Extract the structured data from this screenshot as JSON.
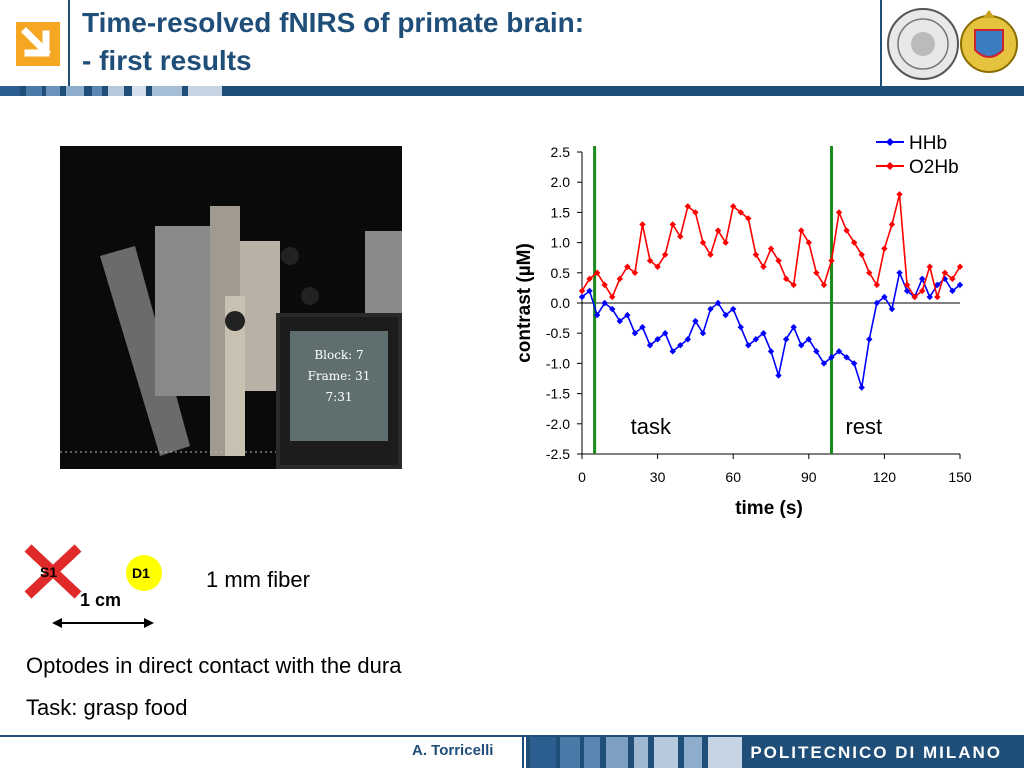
{
  "header": {
    "title_line1": "Time-resolved fNIRS of primate brain:",
    "title_line2": "- first results"
  },
  "photo": {
    "monitor_lines": [
      "Block: 7",
      "Frame: 31",
      "7:31"
    ]
  },
  "chart_data": {
    "type": "line",
    "xlabel": "time (s)",
    "ylabel": "contrast (µM)",
    "xlim": [
      0,
      150
    ],
    "ylim": [
      -2.5,
      2.5
    ],
    "xticks": [
      "0",
      "30",
      "60",
      "90",
      "120",
      "150"
    ],
    "yticks": [
      "2.5",
      "2.0",
      "1.5",
      "1.0",
      "0.5",
      "0.0",
      "-0.5",
      "-1.0",
      "-1.5",
      "-2.0",
      "-2.5"
    ],
    "legend_position": "top-right",
    "markers": [
      {
        "x": 5,
        "label": "task"
      },
      {
        "x": 99,
        "label": "rest"
      }
    ],
    "series": [
      {
        "name": "HHb",
        "color": "#0000ff",
        "x": [
          0,
          3,
          6,
          9,
          12,
          15,
          18,
          21,
          24,
          27,
          30,
          33,
          36,
          39,
          42,
          45,
          48,
          51,
          54,
          57,
          60,
          63,
          66,
          69,
          72,
          75,
          78,
          81,
          84,
          87,
          90,
          93,
          96,
          99,
          102,
          105,
          108,
          111,
          114,
          117,
          120,
          123,
          126,
          129,
          132,
          135,
          138,
          141,
          144,
          147,
          150
        ],
        "y": [
          0.1,
          0.2,
          -0.2,
          0.0,
          -0.1,
          -0.3,
          -0.2,
          -0.5,
          -0.4,
          -0.7,
          -0.6,
          -0.5,
          -0.8,
          -0.7,
          -0.6,
          -0.3,
          -0.5,
          -0.1,
          0.0,
          -0.2,
          -0.1,
          -0.4,
          -0.7,
          -0.6,
          -0.5,
          -0.8,
          -1.2,
          -0.6,
          -0.4,
          -0.7,
          -0.6,
          -0.8,
          -1.0,
          -0.9,
          -0.8,
          -0.9,
          -1.0,
          -1.4,
          -0.6,
          0.0,
          0.1,
          -0.1,
          0.5,
          0.2,
          0.1,
          0.4,
          0.1,
          0.3,
          0.4,
          0.2,
          0.3
        ]
      },
      {
        "name": "O2Hb",
        "color": "#ff0000",
        "x": [
          0,
          3,
          6,
          9,
          12,
          15,
          18,
          21,
          24,
          27,
          30,
          33,
          36,
          39,
          42,
          45,
          48,
          51,
          54,
          57,
          60,
          63,
          66,
          69,
          72,
          75,
          78,
          81,
          84,
          87,
          90,
          93,
          96,
          99,
          102,
          105,
          108,
          111,
          114,
          117,
          120,
          123,
          126,
          129,
          132,
          135,
          138,
          141,
          144,
          147,
          150
        ],
        "y": [
          0.2,
          0.4,
          0.5,
          0.3,
          0.1,
          0.4,
          0.6,
          0.5,
          1.3,
          0.7,
          0.6,
          0.8,
          1.3,
          1.1,
          1.6,
          1.5,
          1.0,
          0.8,
          1.2,
          1.0,
          1.6,
          1.5,
          1.4,
          0.8,
          0.6,
          0.9,
          0.7,
          0.4,
          0.3,
          1.2,
          1.0,
          0.5,
          0.3,
          0.7,
          1.5,
          1.2,
          1.0,
          0.8,
          0.5,
          0.3,
          0.9,
          1.3,
          1.8,
          0.3,
          0.1,
          0.2,
          0.6,
          0.1,
          0.5,
          0.4,
          0.6
        ]
      }
    ]
  },
  "optodes": {
    "source_label": "S1",
    "detector_label": "D1",
    "distance_label": "1 cm",
    "fiber_label": "1 mm fiber"
  },
  "notes": {
    "line1": "Optodes in direct contact with the dura",
    "line2": "Task: grasp food"
  },
  "footer": {
    "author": "A. Torricelli",
    "institution": "POLITECNICO DI MILANO"
  },
  "colors": {
    "brand_blue": "#1f4e79",
    "logo_orange": "#f5a623"
  }
}
